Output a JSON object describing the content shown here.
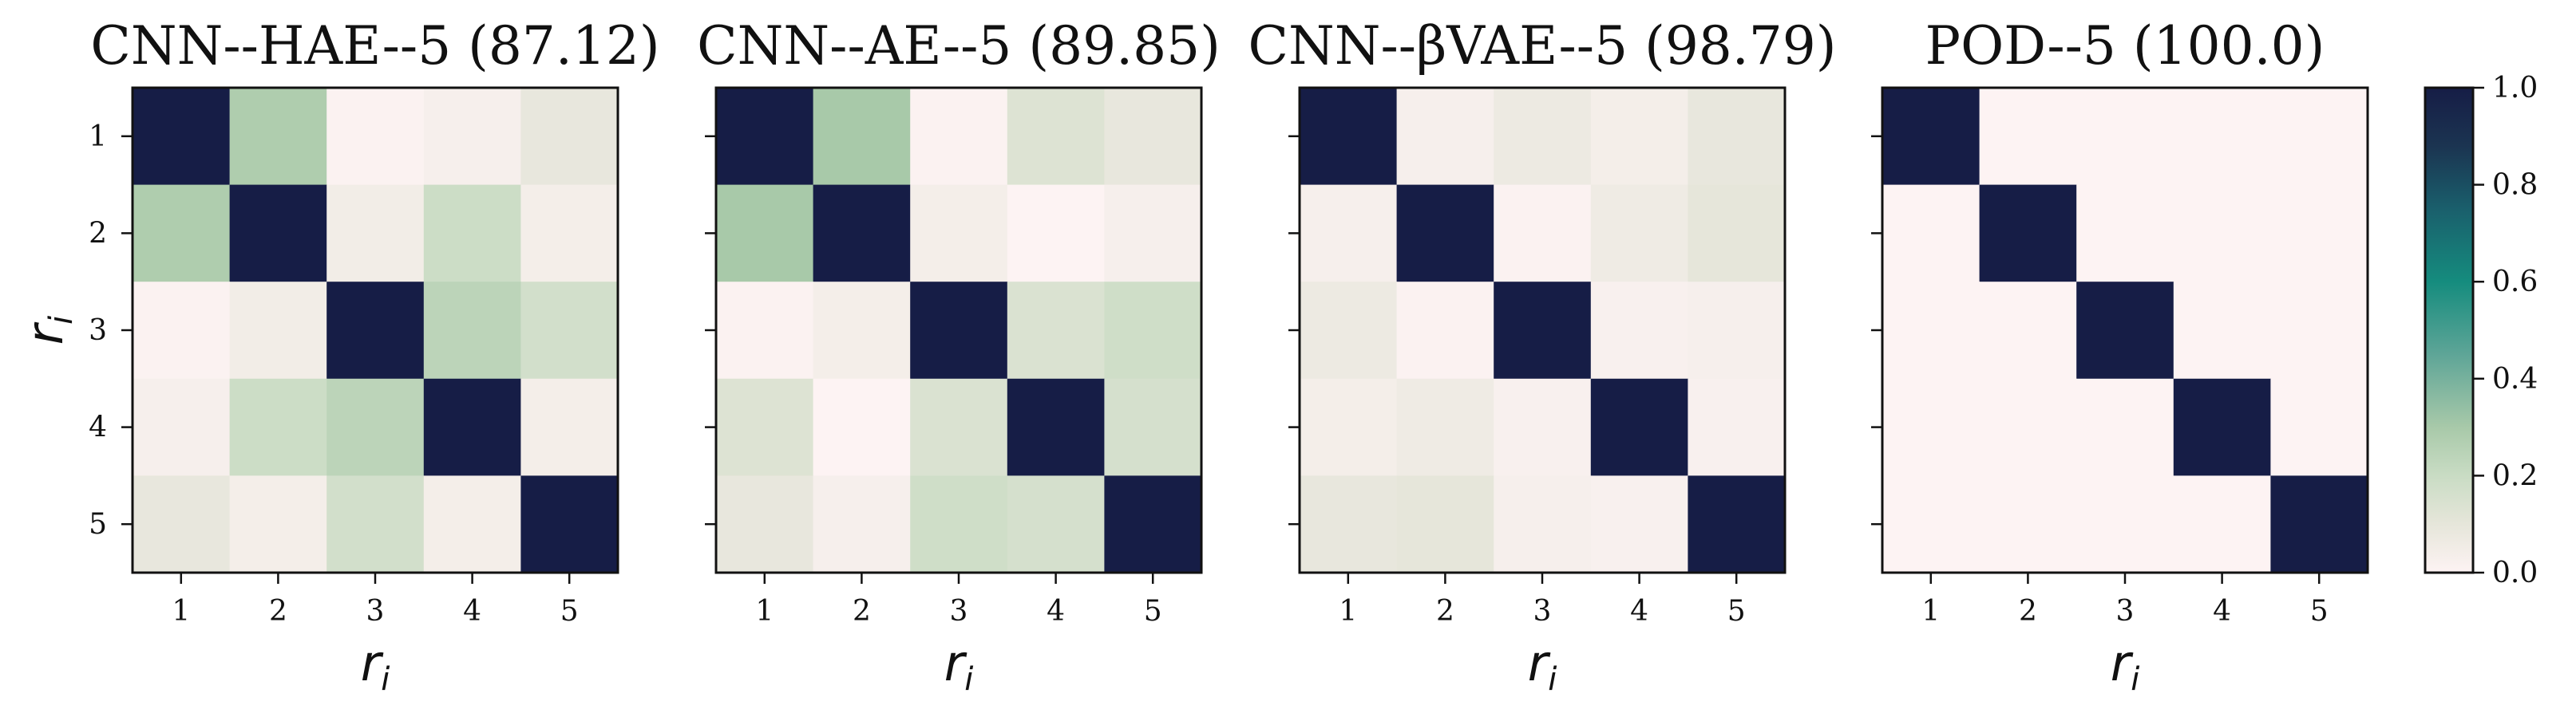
{
  "chart_data": {
    "type": "heatmap",
    "colorbar": {
      "min": 0.0,
      "max": 1.0,
      "ticks": [
        0.0,
        0.2,
        0.4,
        0.6,
        0.8,
        1.0
      ],
      "tick_labels": [
        "0.0",
        "0.2",
        "0.4",
        "0.6",
        "0.8",
        "1.0"
      ],
      "colorscale": [
        [
          0.0,
          "#fdf3f3"
        ],
        [
          0.1,
          "#e6e6da"
        ],
        [
          0.2,
          "#c9dcc4"
        ],
        [
          0.3,
          "#a8c9a9"
        ],
        [
          0.45,
          "#5ea597"
        ],
        [
          0.6,
          "#158c7e"
        ],
        [
          0.75,
          "#1a5f6c"
        ],
        [
          0.88,
          "#1b3451"
        ],
        [
          1.0,
          "#161d46"
        ]
      ]
    },
    "panels": [
      {
        "title": "CNN--HAE--5 (87.12)",
        "xlabel": "r_i",
        "ylabel": "r_i",
        "x_ticks": [
          "1",
          "2",
          "3",
          "4",
          "5"
        ],
        "y_ticks": [
          "1",
          "2",
          "3",
          "4",
          "5"
        ],
        "matrix": [
          [
            1.0,
            0.28,
            0.01,
            0.03,
            0.09
          ],
          [
            0.28,
            1.0,
            0.05,
            0.19,
            0.04
          ],
          [
            0.01,
            0.05,
            1.0,
            0.24,
            0.17
          ],
          [
            0.03,
            0.19,
            0.24,
            1.0,
            0.04
          ],
          [
            0.09,
            0.04,
            0.17,
            0.04,
            1.0
          ]
        ]
      },
      {
        "title": "CNN--AE--5 (89.85)",
        "xlabel": "r_i",
        "ylabel": "",
        "x_ticks": [
          "1",
          "2",
          "3",
          "4",
          "5"
        ],
        "y_ticks": [],
        "matrix": [
          [
            1.0,
            0.3,
            0.01,
            0.13,
            0.09
          ],
          [
            0.3,
            1.0,
            0.04,
            0.0,
            0.03
          ],
          [
            0.01,
            0.04,
            1.0,
            0.14,
            0.18
          ],
          [
            0.13,
            0.0,
            0.14,
            1.0,
            0.16
          ],
          [
            0.09,
            0.03,
            0.18,
            0.16,
            1.0
          ]
        ]
      },
      {
        "title": "CNN--βVAE--5 (98.79)",
        "xlabel": "r_i",
        "ylabel": "",
        "x_ticks": [
          "1",
          "2",
          "3",
          "4",
          "5"
        ],
        "y_ticks": [],
        "matrix": [
          [
            1.0,
            0.03,
            0.07,
            0.04,
            0.09
          ],
          [
            0.03,
            1.0,
            0.01,
            0.06,
            0.1
          ],
          [
            0.07,
            0.01,
            1.0,
            0.02,
            0.03
          ],
          [
            0.04,
            0.06,
            0.02,
            1.0,
            0.02
          ],
          [
            0.09,
            0.1,
            0.03,
            0.02,
            1.0
          ]
        ]
      },
      {
        "title": "POD--5 (100.0)",
        "xlabel": "r_i",
        "ylabel": "",
        "x_ticks": [
          "1",
          "2",
          "3",
          "4",
          "5"
        ],
        "y_ticks": [],
        "matrix": [
          [
            1.0,
            0.0,
            0.0,
            0.0,
            0.0
          ],
          [
            0.0,
            1.0,
            0.0,
            0.0,
            0.0
          ],
          [
            0.0,
            0.0,
            1.0,
            0.0,
            0.0
          ],
          [
            0.0,
            0.0,
            0.0,
            1.0,
            0.0
          ],
          [
            0.0,
            0.0,
            0.0,
            0.0,
            1.0
          ]
        ]
      }
    ]
  }
}
